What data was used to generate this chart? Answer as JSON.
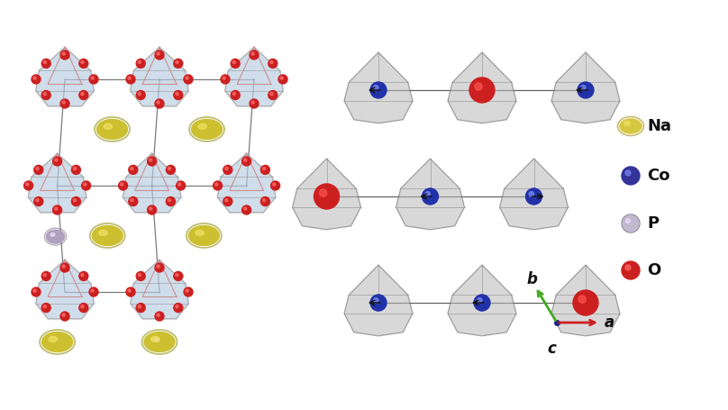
{
  "background_color": "#ffffff",
  "fig_width": 8.08,
  "fig_height": 4.55,
  "dpi": 100,
  "legend_items": [
    {
      "label": "Na",
      "color": "#d4c840",
      "border": "#a89010"
    },
    {
      "label": "Co",
      "color": "#333399",
      "border": "#111166"
    },
    {
      "label": "P",
      "color": "#c0b8cc",
      "border": "#807890"
    },
    {
      "label": "O",
      "color": "#cc2020",
      "border": "#991010"
    }
  ],
  "left_oct_gray": "#909090",
  "left_oct_blue": "#b8cce0",
  "left_oct_pink_line": "#cc8888",
  "right_poly_gray": "#b8b8b8",
  "right_poly_edge": "#606060",
  "line_color": "#222222",
  "na_color": "#ccc030",
  "na_ring_color": "#888800",
  "p_color": "#b0a0c0",
  "p_ring_color": "#806880",
  "o_color": "#cc2020",
  "co_color": "#2233aa",
  "red_sphere_color": "#cc2020",
  "arrow_color": "#111111",
  "axis_a_color": "#cc2020",
  "axis_b_color": "#44aa22",
  "axis_c_color": "#222288"
}
